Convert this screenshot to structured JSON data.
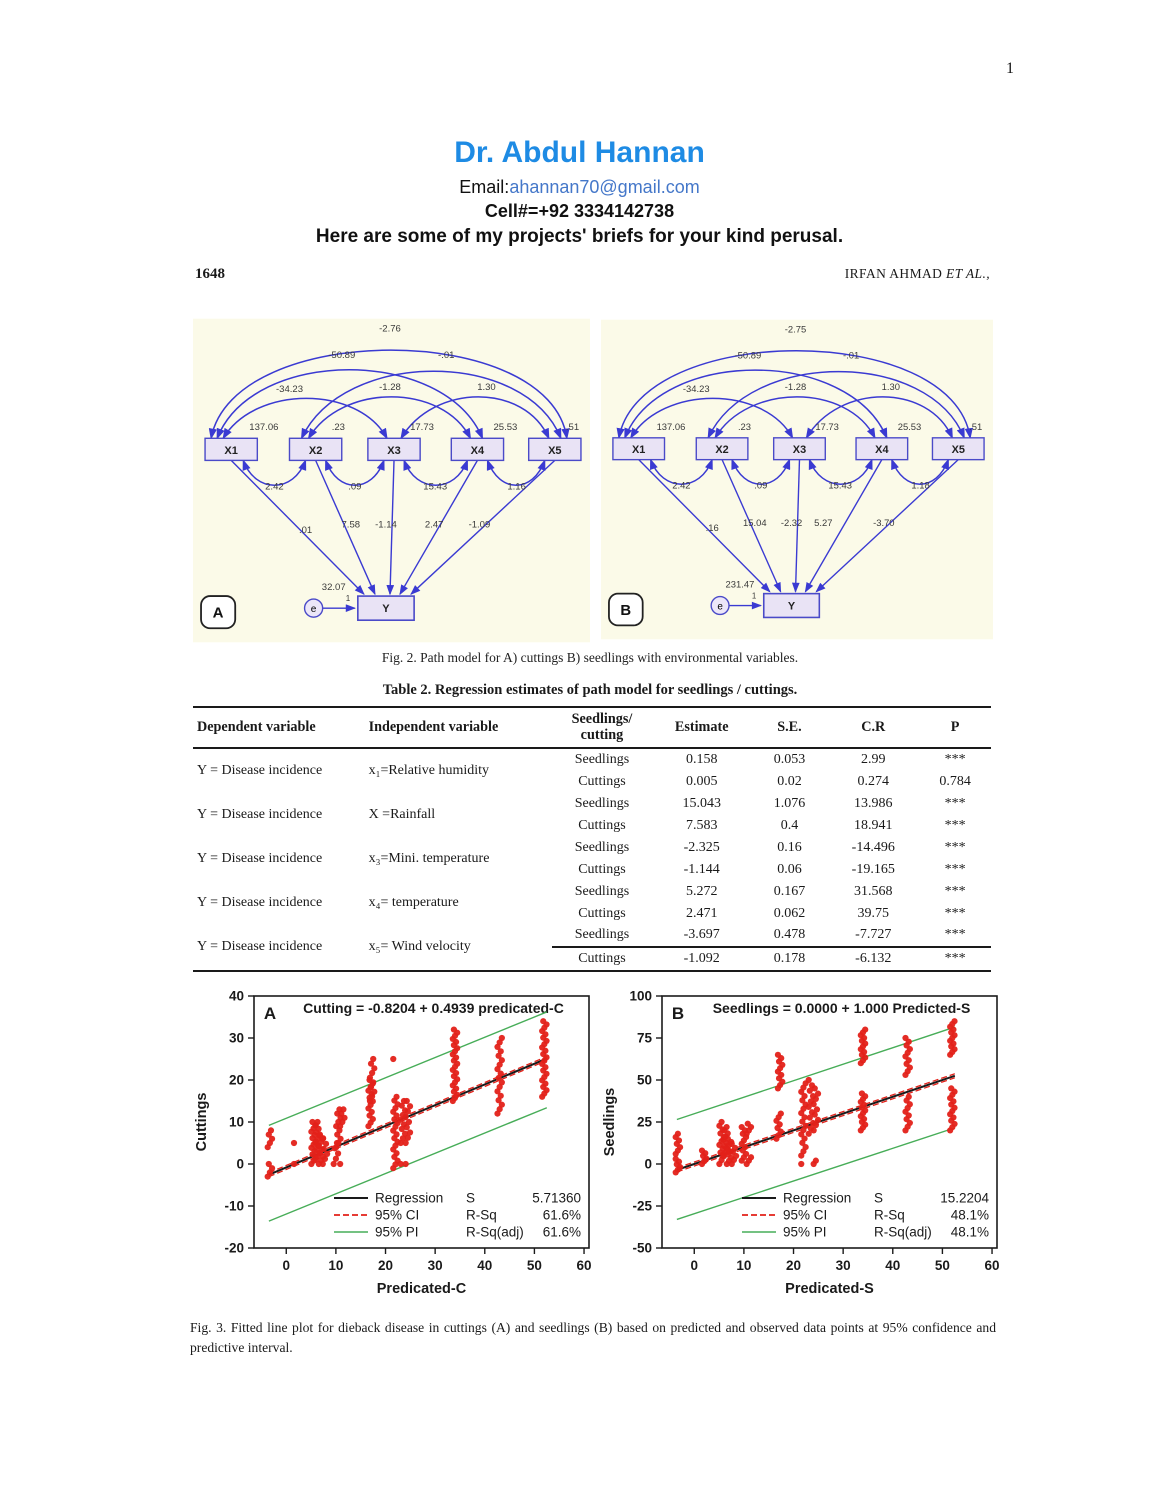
{
  "page_number": "1",
  "header": {
    "title": "Dr. Abdul Hannan",
    "email_label": "Email:",
    "email_address": "ahannan70@gmail.com",
    "cell": "Cell#=+92 3334142738",
    "note": "Here are some of my projects' briefs for your kind perusal."
  },
  "journal": {
    "folio": "1648",
    "authors": "IRFAN AHMAD ",
    "et_al": "ET AL.,"
  },
  "colors": {
    "title_blue": "#1e8be4",
    "link_blue": "#4477c9",
    "arrow_blue": "#3a3ad2",
    "box_fill": "#e9e3f5",
    "diagram_bg": "#fbfae8",
    "point_red": "#e32119",
    "pi_green": "#47ad58"
  },
  "fig2": {
    "caption": "Fig. 2. Path model for A) cuttings B) seedlings with environmental variables.",
    "diagram_a": {
      "panel": "A",
      "boxes": [
        "X1",
        "X2",
        "X3",
        "X4",
        "X5"
      ],
      "y_label": "Y",
      "error_node": "e",
      "variances": [
        "137.06",
        ".23",
        "17.73",
        "25.53",
        ".51"
      ],
      "cov_x1x5": "-2.76",
      "cov_x1x4": "-50.89",
      "cov_x2x5": "-.01",
      "cov_x1x3": "-34.23",
      "cov_x2x4": "-1.28",
      "cov_x3x5": "1.30",
      "cov_x1x2": "2.42",
      "cov_x2x3": ".09",
      "cov_x3x4": "15.43",
      "cov_x4x5": "1.16",
      "path_x1": ".01",
      "path_x2": "7.58",
      "path_x3": "-1.14",
      "path_x4": "2.47",
      "path_x5": "-1.09",
      "error_variance": "32.07",
      "error_weight": "1"
    },
    "diagram_b": {
      "panel": "B",
      "boxes": [
        "X1",
        "X2",
        "X3",
        "X4",
        "X5"
      ],
      "y_label": "Y",
      "error_node": "e",
      "variances": [
        "137.06",
        ".23",
        "17.73",
        "25.53",
        ".51"
      ],
      "cov_x1x5": "-2.75",
      "cov_x1x4": "-50.89",
      "cov_x2x5": "-.01",
      "cov_x1x3": "-34.23",
      "cov_x2x4": "-1.28",
      "cov_x3x5": "1.30",
      "cov_x1x2": "2.42",
      "cov_x2x3": ".09",
      "cov_x3x4": "15.43",
      "cov_x4x5": "1.18",
      "path_x1": ".16",
      "path_x2": "15.04",
      "path_x3": "-2.32",
      "path_x4": "5.27",
      "path_x5": "-3.70",
      "error_variance": "231.47",
      "error_weight": "1"
    }
  },
  "table2": {
    "title": "Table 2. Regression estimates of path model for seedlings / cuttings.",
    "columns": [
      "Dependent variable",
      "Independent variable",
      "Seedlings/\ncutting",
      "Estimate",
      "S.E.",
      "C.R",
      "P"
    ],
    "groups": [
      {
        "dependent": "Y = Disease incidence",
        "independent": "x₁=Relative humidity",
        "rows": [
          [
            "Seedlings",
            "0.158",
            "0.053",
            "2.99",
            "***"
          ],
          [
            "Cuttings",
            "0.005",
            "0.02",
            "0.274",
            "0.784"
          ]
        ]
      },
      {
        "dependent": "Y = Disease incidence",
        "independent": "X =Rainfall",
        "rows": [
          [
            "Seedlings",
            "15.043",
            "1.076",
            "13.986",
            "***"
          ],
          [
            "Cuttings",
            "7.583",
            "0.4",
            "18.941",
            "***"
          ]
        ]
      },
      {
        "dependent": "Y = Disease incidence",
        "independent": "x₃=Mini. temperature",
        "rows": [
          [
            "Seedlings",
            "-2.325",
            "0.16",
            "-14.496",
            "***"
          ],
          [
            "Cuttings",
            "-1.144",
            "0.06",
            "-19.165",
            "***"
          ]
        ]
      },
      {
        "dependent": "Y = Disease incidence",
        "independent": "x₄= temperature",
        "rows": [
          [
            "Seedlings",
            "5.272",
            "0.167",
            "31.568",
            "***"
          ],
          [
            "Cuttings",
            "2.471",
            "0.062",
            "39.75",
            "***"
          ]
        ]
      },
      {
        "dependent": "Y = Disease incidence",
        "independent": "x₅= Wind velocity",
        "rows": [
          [
            "Seedlings",
            "-3.697",
            "0.478",
            "-7.727",
            "***"
          ],
          [
            "Cuttings",
            "-1.092",
            "0.178",
            "-6.132",
            "***"
          ]
        ]
      }
    ]
  },
  "chart_data": [
    {
      "type": "scatter",
      "panel": "A",
      "title": "Cutting = -0.8204 + 0.4939 predicated-C",
      "xlabel": "Predicated-C",
      "ylabel": "Cuttings",
      "xlim": [
        -6.5,
        61
      ],
      "ylim": [
        -20,
        40
      ],
      "xticks": [
        0,
        10,
        20,
        30,
        40,
        50,
        60
      ],
      "yticks": [
        -20,
        -10,
        0,
        10,
        20,
        30,
        40
      ],
      "grid": false,
      "point_color": "#e32119",
      "pi_color": "#47ad58",
      "ci_color": "#e32119",
      "reg_color": "#1a1a1a",
      "line": {
        "x1": -3.5,
        "x2": 52.5,
        "intercept": -0.8204,
        "slope": 0.4939
      },
      "pi_upper": {
        "x1": -3.5,
        "y1": 9.2,
        "x2": 52.5,
        "y2": 36.2
      },
      "pi_lower": {
        "x1": -3.5,
        "y1": -13.6,
        "x2": 52.5,
        "y2": 13.4
      },
      "clusters": [
        [
          -3.3,
          -3,
          0,
          4
        ],
        [
          -3.3,
          4,
          8,
          5
        ],
        [
          2,
          0,
          0,
          1
        ],
        [
          2,
          5,
          5,
          1
        ],
        [
          5.5,
          0,
          10,
          14
        ],
        [
          6.3,
          1,
          10,
          12
        ],
        [
          7,
          0,
          7,
          9
        ],
        [
          7.8,
          0,
          6,
          6
        ],
        [
          10,
          0,
          5,
          5
        ],
        [
          10.5,
          4,
          13,
          10
        ],
        [
          11.3,
          0,
          0,
          1
        ],
        [
          11.3,
          9,
          13,
          5
        ],
        [
          17,
          9,
          20,
          14
        ],
        [
          17.3,
          15,
          25,
          10
        ],
        [
          22,
          -1,
          16,
          20
        ],
        [
          22,
          25,
          25,
          1
        ],
        [
          23.5,
          5,
          15,
          10
        ],
        [
          23.5,
          0,
          0,
          1
        ],
        [
          24.5,
          0,
          0,
          1
        ],
        [
          24.5,
          5,
          15,
          9
        ],
        [
          34,
          15,
          32,
          24
        ],
        [
          43,
          12,
          30,
          18
        ],
        [
          52,
          16,
          34,
          24
        ]
      ],
      "legend": [
        {
          "label": "Regression",
          "color": "#1a1a1a",
          "dash": "",
          "w": 2
        },
        {
          "label": "95% CI",
          "color": "#e32119",
          "dash": "6,3",
          "w": 1.8
        },
        {
          "label": "95% PI",
          "color": "#47ad58",
          "dash": "",
          "w": 1.4
        }
      ],
      "stats": [
        [
          "S",
          "5.71360"
        ],
        [
          "R-Sq",
          "61.6%"
        ],
        [
          "R-Sq(adj)",
          "61.6%"
        ]
      ]
    },
    {
      "type": "scatter",
      "panel": "B",
      "title": "Seedlings = 0.0000 + 1.000 Predicted-S",
      "xlabel": "Predicated-S",
      "ylabel": "Seedlings",
      "xlim": [
        -6.5,
        61
      ],
      "ylim": [
        -50,
        100
      ],
      "xticks": [
        0,
        10,
        20,
        30,
        40,
        50,
        60
      ],
      "yticks": [
        -50,
        -25,
        0,
        25,
        50,
        75,
        100
      ],
      "grid": false,
      "point_color": "#e32119",
      "pi_color": "#47ad58",
      "ci_color": "#e32119",
      "reg_color": "#1a1a1a",
      "line": {
        "x1": -3.5,
        "x2": 52.5,
        "intercept": 0.0,
        "slope": 1.0
      },
      "pi_upper": {
        "x1": -3.5,
        "y1": 26.5,
        "x2": 52.5,
        "y2": 81.5
      },
      "pi_lower": {
        "x1": -3.5,
        "y1": -33,
        "x2": 52.5,
        "y2": 21.5
      },
      "clusters": [
        [
          -3.3,
          -5,
          3,
          6
        ],
        [
          -3.3,
          6,
          18,
          7
        ],
        [
          2,
          0,
          8,
          6
        ],
        [
          5.5,
          0,
          25,
          12
        ],
        [
          6.3,
          5,
          22,
          10
        ],
        [
          7,
          0,
          15,
          9
        ],
        [
          8,
          0,
          12,
          6
        ],
        [
          10,
          2,
          22,
          11
        ],
        [
          11,
          0,
          4,
          3
        ],
        [
          11,
          18,
          24,
          4
        ],
        [
          17,
          15,
          30,
          8
        ],
        [
          17.3,
          45,
          65,
          11
        ],
        [
          22,
          0,
          0,
          1
        ],
        [
          22,
          5,
          48,
          18
        ],
        [
          23.5,
          18,
          50,
          11
        ],
        [
          24.5,
          0,
          2,
          2
        ],
        [
          24.5,
          20,
          45,
          9
        ],
        [
          34,
          20,
          42,
          14
        ],
        [
          34,
          60,
          80,
          13
        ],
        [
          43,
          20,
          40,
          10
        ],
        [
          43,
          53,
          75,
          11
        ],
        [
          52,
          20,
          45,
          14
        ],
        [
          52,
          65,
          85,
          13
        ]
      ],
      "legend": [
        {
          "label": "Regression",
          "color": "#1a1a1a",
          "dash": "",
          "w": 2
        },
        {
          "label": "95% CI",
          "color": "#e32119",
          "dash": "6,3",
          "w": 1.8
        },
        {
          "label": "95% PI",
          "color": "#47ad58",
          "dash": "",
          "w": 1.4
        }
      ],
      "stats": [
        [
          "S",
          "15.2204"
        ],
        [
          "R-Sq",
          "48.1%"
        ],
        [
          "R-Sq(adj)",
          "48.1%"
        ]
      ]
    }
  ],
  "fig3": {
    "caption": "Fig. 3. Fitted line plot for dieback disease in cuttings (A) and seedlings (B) based on predicted and observed data points at 95% confidence and predictive interval."
  }
}
